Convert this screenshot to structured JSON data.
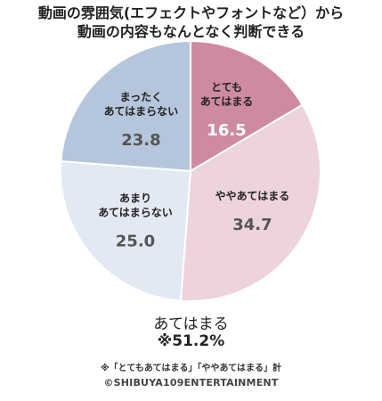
{
  "chart_data": {
    "type": "pie",
    "title": "動画の雰囲気(エフェクトやフォントなど）から動画の内容もなんとなく判断できる",
    "title_lines": [
      "動画の雰囲気(エフェクトやフォントなど）から",
      "動画の内容もなんとなく判断できる"
    ],
    "start": "12 o'clock",
    "direction": "clockwise",
    "slices": [
      {
        "label": "とても\nあてはまる",
        "value": 16.5,
        "display": "16.5",
        "color": "#cf8aa3",
        "value_color": "#ffffff"
      },
      {
        "label": "ややあてはまる",
        "value": 34.7,
        "display": "34.7",
        "color": "#edd3db",
        "value_color": "#555555"
      },
      {
        "label": "あまり\nあてはまらない",
        "value": 25.0,
        "display": "25.0",
        "color": "#e3e9f3",
        "value_color": "#555555"
      },
      {
        "label": "まったく\nあてはまらない",
        "value": 23.8,
        "display": "23.8",
        "color": "#b5c6dc",
        "value_color": "#555555"
      }
    ],
    "summary": {
      "label": "あてはまる",
      "value": "※51.2%",
      "note": "※「とてもあてはまる」「ややあてはまる」計"
    }
  },
  "copyright": "©SHIBUYA109ENTERTAINMENT"
}
